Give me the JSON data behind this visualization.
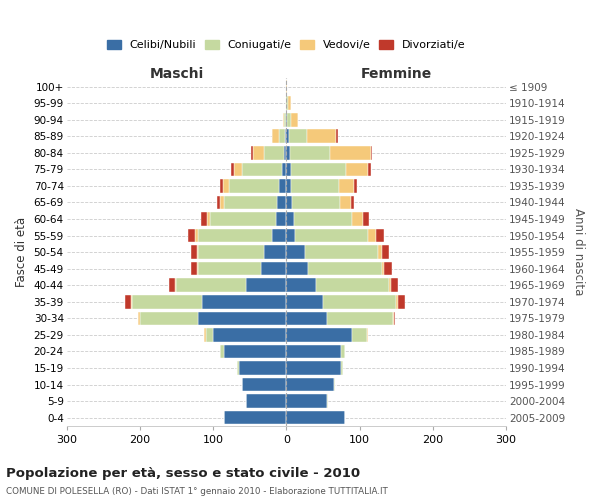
{
  "age_groups": [
    "0-4",
    "5-9",
    "10-14",
    "15-19",
    "20-24",
    "25-29",
    "30-34",
    "35-39",
    "40-44",
    "45-49",
    "50-54",
    "55-59",
    "60-64",
    "65-69",
    "70-74",
    "75-79",
    "80-84",
    "85-89",
    "90-94",
    "95-99",
    "100+"
  ],
  "birth_years": [
    "2005-2009",
    "2000-2004",
    "1995-1999",
    "1990-1994",
    "1985-1989",
    "1980-1984",
    "1975-1979",
    "1970-1974",
    "1965-1969",
    "1960-1964",
    "1955-1959",
    "1950-1954",
    "1945-1949",
    "1940-1944",
    "1935-1939",
    "1930-1934",
    "1925-1929",
    "1920-1924",
    "1915-1919",
    "1910-1914",
    "≤ 1909"
  ],
  "colors": {
    "celibi": "#3a6ea5",
    "coniugati": "#c5d9a0",
    "vedovi": "#f5c97a",
    "divorziati": "#c0392b"
  },
  "maschi": {
    "celibi": [
      85,
      55,
      60,
      65,
      85,
      100,
      120,
      115,
      55,
      35,
      30,
      20,
      14,
      13,
      10,
      6,
      3,
      2,
      1,
      0,
      0
    ],
    "coniugati": [
      0,
      0,
      0,
      2,
      5,
      10,
      80,
      95,
      95,
      85,
      90,
      100,
      90,
      72,
      68,
      55,
      28,
      8,
      2,
      0,
      0
    ],
    "vedovi": [
      0,
      0,
      0,
      0,
      0,
      2,
      2,
      2,
      2,
      2,
      2,
      4,
      4,
      5,
      8,
      10,
      15,
      10,
      2,
      1,
      0
    ],
    "divorziati": [
      0,
      0,
      0,
      0,
      0,
      0,
      0,
      8,
      8,
      8,
      8,
      10,
      8,
      4,
      4,
      5,
      2,
      0,
      0,
      0,
      0
    ]
  },
  "femmine": {
    "celibi": [
      80,
      55,
      65,
      75,
      75,
      90,
      55,
      50,
      40,
      30,
      25,
      12,
      10,
      8,
      7,
      6,
      5,
      3,
      1,
      0,
      0
    ],
    "coniugati": [
      0,
      2,
      2,
      2,
      5,
      20,
      90,
      100,
      100,
      100,
      100,
      100,
      80,
      65,
      65,
      75,
      55,
      25,
      5,
      2,
      0
    ],
    "vedovi": [
      0,
      0,
      0,
      0,
      0,
      2,
      2,
      2,
      3,
      4,
      5,
      10,
      15,
      15,
      20,
      30,
      55,
      40,
      10,
      5,
      1
    ],
    "divorziati": [
      0,
      0,
      0,
      0,
      0,
      0,
      2,
      10,
      10,
      10,
      10,
      12,
      8,
      5,
      5,
      5,
      2,
      2,
      0,
      0,
      0
    ]
  },
  "title": "Popolazione per età, sesso e stato civile - 2010",
  "subtitle": "COMUNE DI POLESELLA (RO) - Dati ISTAT 1° gennaio 2010 - Elaborazione TUTTITALIA.IT",
  "xlim": 300,
  "legend_labels": [
    "Celibi/Nubili",
    "Coniugati/e",
    "Vedovi/e",
    "Divorziati/e"
  ],
  "ylabel_left": "Fasce di età",
  "ylabel_right": "Anni di nascita",
  "xlabel_left": "Maschi",
  "xlabel_right": "Femmine"
}
